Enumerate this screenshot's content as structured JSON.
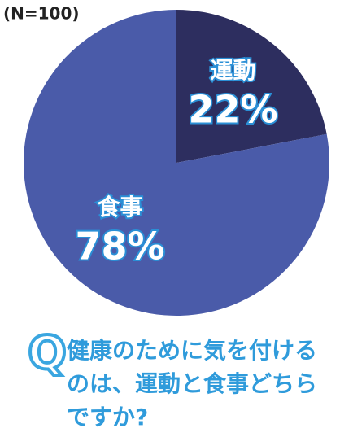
{
  "chart_data": {
    "type": "pie",
    "note": "(N=100)",
    "categories": [
      "運動",
      "食事"
    ],
    "values": [
      22,
      78
    ],
    "value_labels": [
      "22%",
      "78%"
    ],
    "colors": [
      "#2d2e5f",
      "#4a5ba9"
    ]
  },
  "question": {
    "icon": "Q",
    "lines": [
      "健康のために気を付ける",
      "のは、運動と食事どちら",
      "ですか?"
    ]
  }
}
